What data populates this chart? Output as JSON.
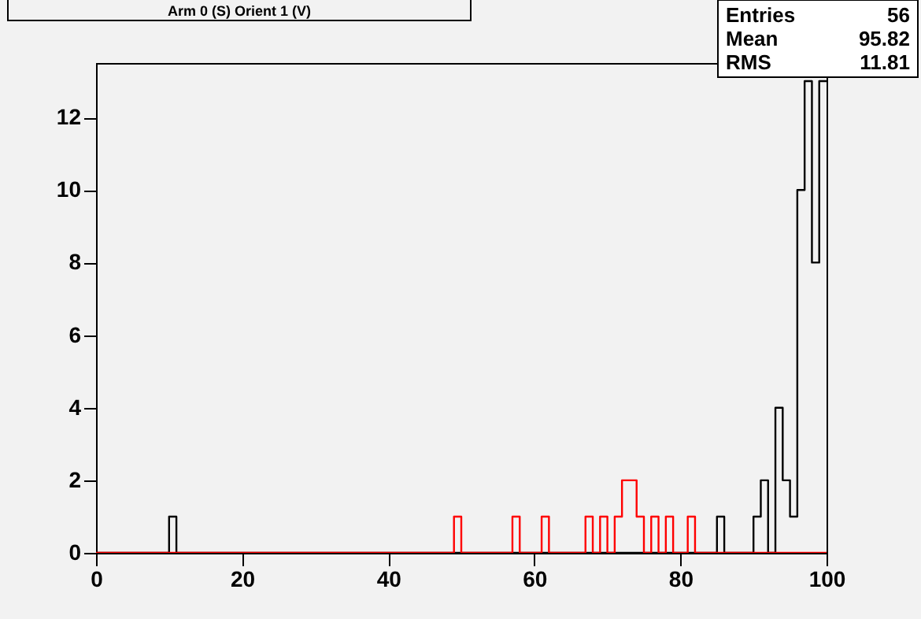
{
  "chart_data": {
    "type": "histogram",
    "title": "Arm 0 (S) Orient 1 (V)",
    "bins": [
      0,
      1,
      2,
      3,
      4,
      5,
      6,
      7,
      8,
      9,
      10,
      11,
      12,
      13,
      14,
      15,
      16,
      17,
      18,
      19,
      20,
      21,
      22,
      23,
      24,
      25,
      26,
      27,
      28,
      29,
      30,
      31,
      32,
      33,
      34,
      35,
      36,
      37,
      38,
      39,
      40,
      41,
      42,
      43,
      44,
      45,
      46,
      47,
      48,
      49,
      50,
      51,
      52,
      53,
      54,
      55,
      56,
      57,
      58,
      59,
      60,
      61,
      62,
      63,
      64,
      65,
      66,
      67,
      68,
      69,
      70,
      71,
      72,
      73,
      74,
      75,
      76,
      77,
      78,
      79,
      80,
      81,
      82,
      83,
      84,
      85,
      86,
      87,
      88,
      89,
      90,
      91,
      92,
      93,
      94,
      95,
      96,
      97,
      98,
      99,
      100
    ],
    "series": [
      {
        "color": "#000000",
        "values": [
          0,
          0,
          0,
          0,
          0,
          0,
          0,
          0,
          0,
          0,
          1,
          0,
          0,
          0,
          0,
          0,
          0,
          0,
          0,
          0,
          0,
          0,
          0,
          0,
          0,
          0,
          0,
          0,
          0,
          0,
          0,
          0,
          0,
          0,
          0,
          0,
          0,
          0,
          0,
          0,
          0,
          0,
          0,
          0,
          0,
          0,
          0,
          0,
          0,
          0,
          0,
          0,
          0,
          0,
          0,
          0,
          0,
          0,
          0,
          0,
          0,
          0,
          0,
          0,
          0,
          0,
          0,
          0,
          0,
          0,
          0,
          0,
          0,
          0,
          0,
          0,
          0,
          0,
          0,
          0,
          0,
          0,
          0,
          0,
          0,
          1,
          0,
          0,
          0,
          0,
          1,
          2,
          0,
          4,
          2,
          1,
          10,
          13,
          8,
          13
        ]
      },
      {
        "color": "#ff0000",
        "values": [
          0,
          0,
          0,
          0,
          0,
          0,
          0,
          0,
          0,
          0,
          0,
          0,
          0,
          0,
          0,
          0,
          0,
          0,
          0,
          0,
          0,
          0,
          0,
          0,
          0,
          0,
          0,
          0,
          0,
          0,
          0,
          0,
          0,
          0,
          0,
          0,
          0,
          0,
          0,
          0,
          0,
          0,
          0,
          0,
          0,
          0,
          0,
          0,
          0,
          1,
          0,
          0,
          0,
          0,
          0,
          0,
          0,
          1,
          0,
          0,
          0,
          1,
          0,
          0,
          0,
          0,
          0,
          1,
          0,
          1,
          0,
          1,
          2,
          2,
          1,
          0,
          1,
          0,
          1,
          0,
          0,
          1,
          0,
          0,
          0,
          0,
          0,
          0,
          0,
          0,
          0,
          0,
          0,
          0,
          0,
          0,
          0,
          0,
          0,
          0
        ]
      }
    ],
    "xlim": [
      0,
      100
    ],
    "xticks": [
      0,
      20,
      40,
      60,
      80,
      100
    ],
    "ylim": [
      0,
      13.5
    ],
    "yticks": [
      0,
      2,
      4,
      6,
      8,
      10,
      12
    ],
    "annotations": [
      "Entries 56",
      "Mean 95.82",
      "RMS 11.81"
    ],
    "grid": false
  }
}
